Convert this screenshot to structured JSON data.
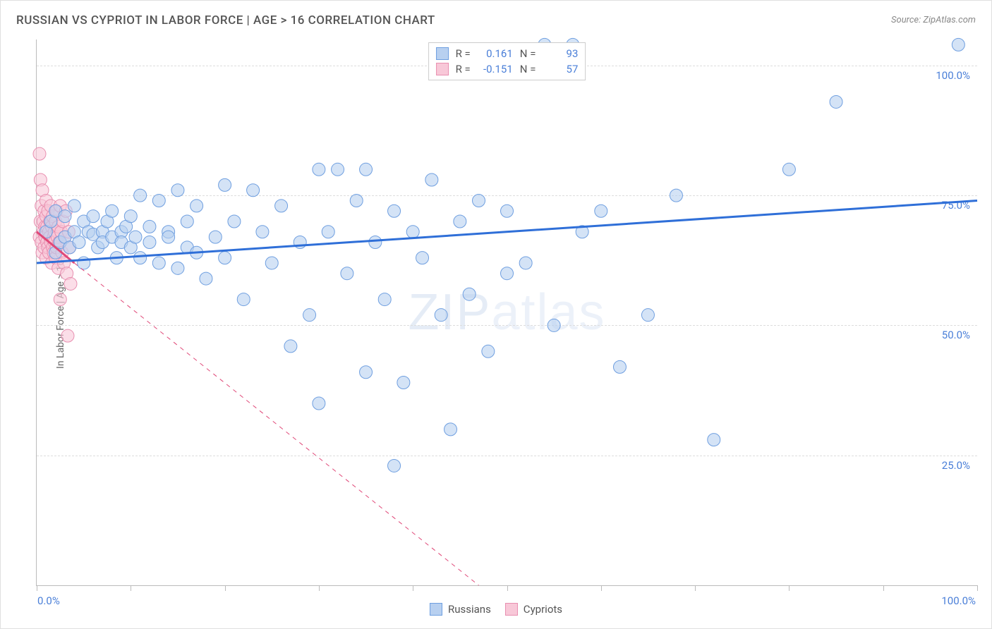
{
  "title": "RUSSIAN VS CYPRIOT IN LABOR FORCE | AGE > 16 CORRELATION CHART",
  "source": "Source: ZipAtlas.com",
  "watermark_a": "ZIP",
  "watermark_b": "atlas",
  "y_label": "In Labor Force | Age > 16",
  "chart": {
    "type": "scatter",
    "xlim": [
      0,
      100
    ],
    "ylim": [
      0,
      105
    ],
    "background_color": "#ffffff",
    "grid_color": "#dddddd",
    "axis_color": "#bbbbbb",
    "tick_label_color": "#4a7fd8",
    "y_ticks": [
      25,
      50,
      75,
      100
    ],
    "y_tick_labels": [
      "25.0%",
      "50.0%",
      "75.0%",
      "100.0%"
    ],
    "x_ticks": [
      0,
      10,
      20,
      30,
      40,
      50,
      60,
      70,
      80,
      90,
      100
    ],
    "x_min_label": "0.0%",
    "x_max_label": "100.0%",
    "marker_radius": 9,
    "marker_stroke_width": 1,
    "trend_line_width": 3,
    "trend_line_width_thin": 1,
    "series": {
      "russians": {
        "label": "Russians",
        "fill": "#b8d0f0",
        "stroke": "#6f9fe0",
        "fill_opacity": 0.6,
        "trend_color": "#2f6fd8",
        "R": "0.161",
        "N": "93",
        "trend_solid": {
          "x1": 0,
          "y1": 62,
          "x2": 100,
          "y2": 74
        },
        "points": [
          [
            1,
            68
          ],
          [
            1.5,
            70
          ],
          [
            2,
            72
          ],
          [
            2,
            64
          ],
          [
            2.5,
            66
          ],
          [
            3,
            67
          ],
          [
            3,
            71
          ],
          [
            3.5,
            65
          ],
          [
            4,
            68
          ],
          [
            4,
            73
          ],
          [
            4.5,
            66
          ],
          [
            5,
            70
          ],
          [
            5,
            62
          ],
          [
            5.5,
            68
          ],
          [
            6,
            67.5
          ],
          [
            6,
            71
          ],
          [
            6.5,
            65
          ],
          [
            7,
            68
          ],
          [
            7,
            66
          ],
          [
            7.5,
            70
          ],
          [
            8,
            67
          ],
          [
            8,
            72
          ],
          [
            8.5,
            63
          ],
          [
            9,
            68
          ],
          [
            9,
            66
          ],
          [
            9.5,
            69
          ],
          [
            10,
            65
          ],
          [
            10,
            71
          ],
          [
            10.5,
            67
          ],
          [
            11,
            75
          ],
          [
            11,
            63
          ],
          [
            12,
            69
          ],
          [
            12,
            66
          ],
          [
            13,
            74
          ],
          [
            13,
            62
          ],
          [
            14,
            68
          ],
          [
            14,
            67
          ],
          [
            15,
            76
          ],
          [
            15,
            61
          ],
          [
            16,
            70
          ],
          [
            16,
            65
          ],
          [
            17,
            64
          ],
          [
            17,
            73
          ],
          [
            18,
            59
          ],
          [
            19,
            67
          ],
          [
            20,
            77
          ],
          [
            20,
            63
          ],
          [
            21,
            70
          ],
          [
            22,
            55
          ],
          [
            23,
            76
          ],
          [
            24,
            68
          ],
          [
            25,
            62
          ],
          [
            26,
            73
          ],
          [
            27,
            46
          ],
          [
            28,
            66
          ],
          [
            29,
            52
          ],
          [
            30,
            80
          ],
          [
            30,
            35
          ],
          [
            31,
            68
          ],
          [
            32,
            80
          ],
          [
            33,
            60
          ],
          [
            34,
            74
          ],
          [
            35,
            80
          ],
          [
            35,
            41
          ],
          [
            36,
            66
          ],
          [
            37,
            55
          ],
          [
            38,
            72
          ],
          [
            38,
            23
          ],
          [
            39,
            39
          ],
          [
            40,
            68
          ],
          [
            41,
            63
          ],
          [
            42,
            78
          ],
          [
            43,
            52
          ],
          [
            44,
            30
          ],
          [
            45,
            70
          ],
          [
            46,
            56
          ],
          [
            47,
            74
          ],
          [
            48,
            45
          ],
          [
            50,
            72
          ],
          [
            50,
            60
          ],
          [
            52,
            62
          ],
          [
            54,
            104
          ],
          [
            55,
            50
          ],
          [
            57,
            104
          ],
          [
            58,
            68
          ],
          [
            60,
            72
          ],
          [
            62,
            42
          ],
          [
            65,
            52
          ],
          [
            68,
            75
          ],
          [
            72,
            28
          ],
          [
            80,
            80
          ],
          [
            85,
            93
          ],
          [
            98,
            104
          ]
        ]
      },
      "cypriots": {
        "label": "Cypriots",
        "fill": "#f8c8d8",
        "stroke": "#e88fb0",
        "fill_opacity": 0.6,
        "trend_color": "#e04878",
        "R": "-0.151",
        "N": "57",
        "trend_solid": {
          "x1": 0,
          "y1": 68,
          "x2": 4,
          "y2": 62
        },
        "trend_dashed": {
          "x1": 4,
          "y1": 62,
          "x2": 47,
          "y2": 0
        },
        "points": [
          [
            0.3,
            83
          ],
          [
            0.3,
            67
          ],
          [
            0.4,
            78
          ],
          [
            0.4,
            70
          ],
          [
            0.5,
            73
          ],
          [
            0.5,
            66
          ],
          [
            0.6,
            76
          ],
          [
            0.6,
            64
          ],
          [
            0.7,
            70
          ],
          [
            0.7,
            68
          ],
          [
            0.8,
            72
          ],
          [
            0.8,
            65
          ],
          [
            0.9,
            69
          ],
          [
            0.9,
            67
          ],
          [
            1.0,
            74
          ],
          [
            1.0,
            63
          ],
          [
            1.0,
            71
          ],
          [
            1.1,
            66
          ],
          [
            1.1,
            69
          ],
          [
            1.2,
            65
          ],
          [
            1.2,
            72
          ],
          [
            1.3,
            68
          ],
          [
            1.3,
            64
          ],
          [
            1.4,
            70
          ],
          [
            1.4,
            67
          ],
          [
            1.5,
            66
          ],
          [
            1.5,
            73
          ],
          [
            1.6,
            62
          ],
          [
            1.6,
            69
          ],
          [
            1.7,
            65
          ],
          [
            1.7,
            71
          ],
          [
            1.8,
            67
          ],
          [
            1.8,
            64
          ],
          [
            1.9,
            68
          ],
          [
            1.9,
            66
          ],
          [
            2.0,
            70
          ],
          [
            2.0,
            63
          ],
          [
            2.1,
            72
          ],
          [
            2.1,
            65
          ],
          [
            2.2,
            68
          ],
          [
            2.2,
            67
          ],
          [
            2.3,
            61
          ],
          [
            2.3,
            69
          ],
          [
            2.4,
            66
          ],
          [
            2.5,
            73
          ],
          [
            2.5,
            55
          ],
          [
            2.6,
            68
          ],
          [
            2.7,
            64
          ],
          [
            2.8,
            70
          ],
          [
            2.9,
            62
          ],
          [
            3.0,
            67
          ],
          [
            3.1,
            72
          ],
          [
            3.2,
            60
          ],
          [
            3.3,
            48
          ],
          [
            3.4,
            68
          ],
          [
            3.5,
            65
          ],
          [
            3.6,
            58
          ]
        ]
      }
    }
  },
  "legend_top": {
    "r_label": "R =",
    "n_label": "N ="
  }
}
